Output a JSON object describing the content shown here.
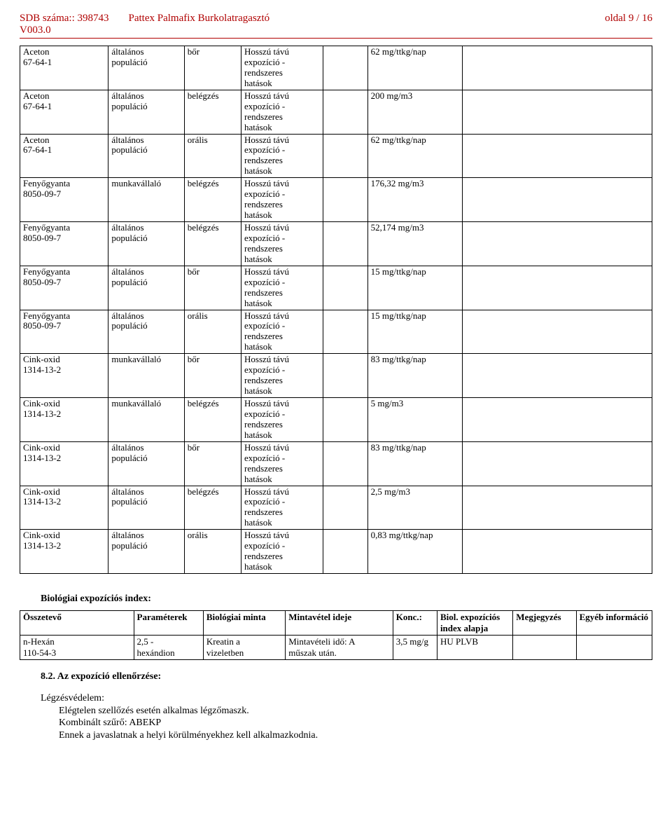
{
  "header": {
    "sdb_label": "SDB száma:: 398743",
    "product": "Pattex Palmafix Burkolatragasztó",
    "page": "oldal 9 / 16",
    "version": "V003.0"
  },
  "effect_text": "Hosszú távú\nexpozíció -\nrendszeres\nhatások",
  "pop_general": "általános\npopuláció",
  "pop_worker": "munkavállaló",
  "route": {
    "skin": "bőr",
    "inhale": "belégzés",
    "oral": "orális"
  },
  "rows": [
    {
      "substance": "Aceton\n67-64-1",
      "pop": "general",
      "route": "skin",
      "value": "62 mg/ttkg/nap"
    },
    {
      "substance": "Aceton\n67-64-1",
      "pop": "general",
      "route": "inhale",
      "value": "200 mg/m3"
    },
    {
      "substance": "Aceton\n67-64-1",
      "pop": "general",
      "route": "oral",
      "value": "62 mg/ttkg/nap"
    },
    {
      "substance": "Fenyőgyanta\n8050-09-7",
      "pop": "worker",
      "route": "inhale",
      "value": "176,32 mg/m3"
    },
    {
      "substance": "Fenyőgyanta\n8050-09-7",
      "pop": "general",
      "route": "inhale",
      "value": "52,174 mg/m3"
    },
    {
      "substance": "Fenyőgyanta\n8050-09-7",
      "pop": "general",
      "route": "skin",
      "value": "15 mg/ttkg/nap"
    },
    {
      "substance": "Fenyőgyanta\n8050-09-7",
      "pop": "general",
      "route": "oral",
      "value": "15 mg/ttkg/nap"
    },
    {
      "substance": "Cink-oxid\n1314-13-2",
      "pop": "worker",
      "route": "skin",
      "value": "83 mg/ttkg/nap"
    },
    {
      "substance": "Cink-oxid\n1314-13-2",
      "pop": "worker",
      "route": "inhale",
      "value": "5 mg/m3"
    },
    {
      "substance": "Cink-oxid\n1314-13-2",
      "pop": "general",
      "route": "skin",
      "value": "83 mg/ttkg/nap"
    },
    {
      "substance": "Cink-oxid\n1314-13-2",
      "pop": "general",
      "route": "inhale",
      "value": "2,5 mg/m3"
    },
    {
      "substance": "Cink-oxid\n1314-13-2",
      "pop": "general",
      "route": "oral",
      "value": "0,83 mg/ttkg/nap"
    }
  ],
  "bio": {
    "title": "Biológiai expozíciós index:",
    "headers": {
      "c1": "Összetevő",
      "c2": "Paraméterek",
      "c3": "Biológiai minta",
      "c4": "Mintavétel ideje",
      "c5": "Konc.:",
      "c6": "Biol. expozíciós index alapja",
      "c7": "Megjegyzés",
      "c8": "Egyéb információ"
    },
    "row": {
      "c1": "n-Hexán\n110-54-3",
      "c2": "2,5 -\nhexándion",
      "c3": "Kreatin a\nvizeletben",
      "c4": "Mintavételi idő: A\nműszak után.",
      "c5": "3,5 mg/g",
      "c6": "HU PLVB",
      "c7": "",
      "c8": ""
    }
  },
  "section82": {
    "heading": "8.2. Az expozíció ellenőrzése:",
    "resp_label": "Légzésvédelem:",
    "line1": "Elégtelen szellőzés esetén alkalmas légzőmaszk.",
    "line2": "Kombinált szűrő: ABEKP",
    "line3": "Ennek a javaslatnak a helyi körülményekhez kell alkalmazkodnia."
  }
}
